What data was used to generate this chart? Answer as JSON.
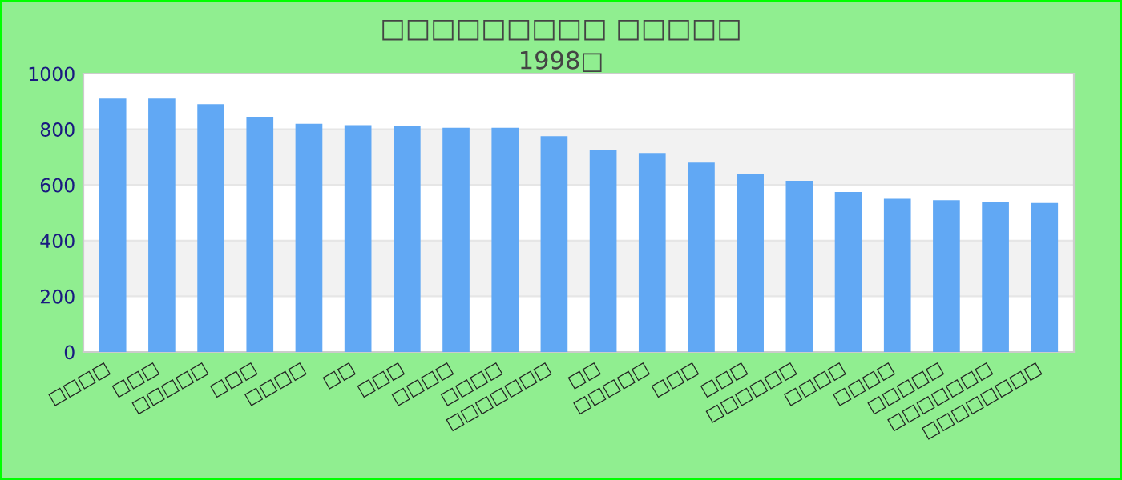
{
  "chart_data": {
    "type": "bar",
    "title": "□□□□□□□□□ □□□□□",
    "subtitle": "1998□",
    "categories": [
      "□□□□",
      "□□□",
      "□□□□□",
      "□□□",
      "□□□□",
      "□□",
      "□□□",
      "□□□□",
      "□□□□",
      "□□□□□□□",
      "□□",
      "□□□□□",
      "□□□",
      "□□□",
      "□□□□□□",
      "□□□□",
      "□□□□",
      "□□□□□",
      "□□□□□□□",
      "□□□□□□□□"
    ],
    "values": [
      910,
      910,
      890,
      845,
      820,
      815,
      810,
      805,
      805,
      775,
      725,
      715,
      680,
      640,
      615,
      575,
      550,
      545,
      540,
      535
    ],
    "color": "#61a8f4",
    "ylim": [
      0,
      1000
    ],
    "yticks": [
      0,
      200,
      400,
      600,
      800,
      1000
    ],
    "grid": "y"
  }
}
